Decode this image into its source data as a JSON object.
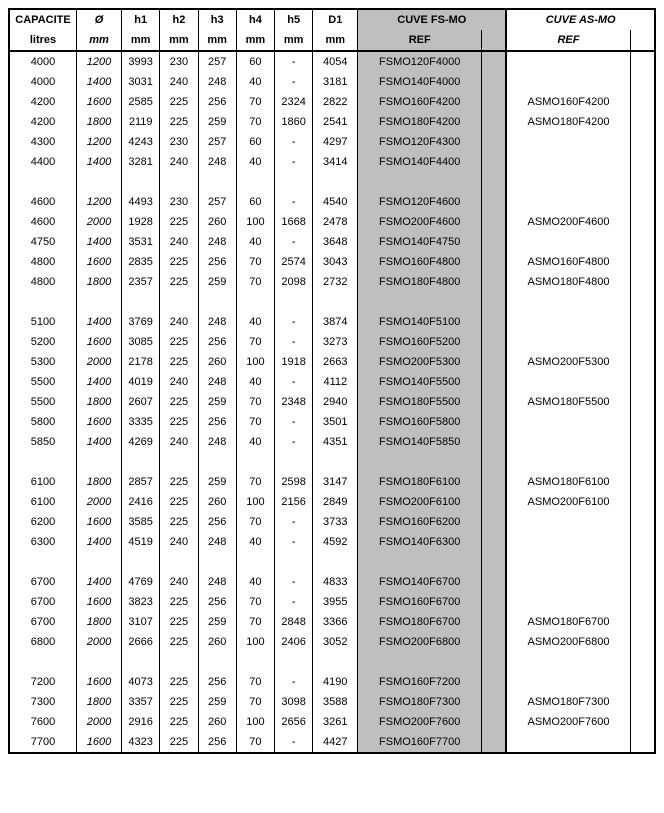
{
  "header": {
    "capacite": "CAPACITE",
    "capacite_unit": "litres",
    "diameter": "Ø",
    "unit_mm": "mm",
    "h1": "h1",
    "h2": "h2",
    "h3": "h3",
    "h4": "h4",
    "h5": "h5",
    "d1": "D1",
    "cuve_fs": "CUVE FS-MO",
    "cuve_as": "CUVE AS-MO",
    "ref": "REF"
  },
  "colors": {
    "fs_bg": "#bfbfbf",
    "border": "#000000",
    "bg": "#ffffff"
  },
  "rows": [
    {
      "cap": "4000",
      "dia": "1200",
      "h1": "3993",
      "h2": "230",
      "h3": "257",
      "h4": "60",
      "h5": "-",
      "d1": "4054",
      "fs": "FSMO120F4000",
      "as": ""
    },
    {
      "cap": "4000",
      "dia": "1400",
      "h1": "3031",
      "h2": "240",
      "h3": "248",
      "h4": "40",
      "h5": "-",
      "d1": "3181",
      "fs": "FSMO140F4000",
      "as": ""
    },
    {
      "cap": "4200",
      "dia": "1600",
      "h1": "2585",
      "h2": "225",
      "h3": "256",
      "h4": "70",
      "h5": "2324",
      "d1": "2822",
      "fs": "FSMO160F4200",
      "as": "ASMO160F4200"
    },
    {
      "cap": "4200",
      "dia": "1800",
      "h1": "2119",
      "h2": "225",
      "h3": "259",
      "h4": "70",
      "h5": "1860",
      "d1": "2541",
      "fs": "FSMO180F4200",
      "as": "ASMO180F4200"
    },
    {
      "cap": "4300",
      "dia": "1200",
      "h1": "4243",
      "h2": "230",
      "h3": "257",
      "h4": "60",
      "h5": "-",
      "d1": "4297",
      "fs": "FSMO120F4300",
      "as": ""
    },
    {
      "cap": "4400",
      "dia": "1400",
      "h1": "3281",
      "h2": "240",
      "h3": "248",
      "h4": "40",
      "h5": "-",
      "d1": "3414",
      "fs": "FSMO140F4400",
      "as": ""
    },
    {
      "blank": true
    },
    {
      "cap": "4600",
      "dia": "1200",
      "h1": "4493",
      "h2": "230",
      "h3": "257",
      "h4": "60",
      "h5": "-",
      "d1": "4540",
      "fs": "FSMO120F4600",
      "as": ""
    },
    {
      "cap": "4600",
      "dia": "2000",
      "h1": "1928",
      "h2": "225",
      "h3": "260",
      "h4": "100",
      "h5": "1668",
      "d1": "2478",
      "fs": "FSMO200F4600",
      "as": "ASMO200F4600"
    },
    {
      "cap": "4750",
      "dia": "1400",
      "h1": "3531",
      "h2": "240",
      "h3": "248",
      "h4": "40",
      "h5": "-",
      "d1": "3648",
      "fs": "FSMO140F4750",
      "as": ""
    },
    {
      "cap": "4800",
      "dia": "1600",
      "h1": "2835",
      "h2": "225",
      "h3": "256",
      "h4": "70",
      "h5": "2574",
      "d1": "3043",
      "fs": "FSMO160F4800",
      "as": "ASMO160F4800"
    },
    {
      "cap": "4800",
      "dia": "1800",
      "h1": "2357",
      "h2": "225",
      "h3": "259",
      "h4": "70",
      "h5": "2098",
      "d1": "2732",
      "fs": "FSMO180F4800",
      "as": "ASMO180F4800"
    },
    {
      "blank": true
    },
    {
      "cap": "5100",
      "dia": "1400",
      "h1": "3769",
      "h2": "240",
      "h3": "248",
      "h4": "40",
      "h5": "-",
      "d1": "3874",
      "fs": "FSMO140F5100",
      "as": ""
    },
    {
      "cap": "5200",
      "dia": "1600",
      "h1": "3085",
      "h2": "225",
      "h3": "256",
      "h4": "70",
      "h5": "-",
      "d1": "3273",
      "fs": "FSMO160F5200",
      "as": ""
    },
    {
      "cap": "5300",
      "dia": "2000",
      "h1": "2178",
      "h2": "225",
      "h3": "260",
      "h4": "100",
      "h5": "1918",
      "d1": "2663",
      "fs": "FSMO200F5300",
      "as": "ASMO200F5300"
    },
    {
      "cap": "5500",
      "dia": "1400",
      "h1": "4019",
      "h2": "240",
      "h3": "248",
      "h4": "40",
      "h5": "-",
      "d1": "4112",
      "fs": "FSMO140F5500",
      "as": ""
    },
    {
      "cap": "5500",
      "dia": "1800",
      "h1": "2607",
      "h2": "225",
      "h3": "259",
      "h4": "70",
      "h5": "2348",
      "d1": "2940",
      "fs": "FSMO180F5500",
      "as": "ASMO180F5500"
    },
    {
      "cap": "5800",
      "dia": "1600",
      "h1": "3335",
      "h2": "225",
      "h3": "256",
      "h4": "70",
      "h5": "-",
      "d1": "3501",
      "fs": "FSMO160F5800",
      "as": ""
    },
    {
      "cap": "5850",
      "dia": "1400",
      "h1": "4269",
      "h2": "240",
      "h3": "248",
      "h4": "40",
      "h5": "-",
      "d1": "4351",
      "fs": "FSMO140F5850",
      "as": ""
    },
    {
      "blank": true
    },
    {
      "cap": "6100",
      "dia": "1800",
      "h1": "2857",
      "h2": "225",
      "h3": "259",
      "h4": "70",
      "h5": "2598",
      "d1": "3147",
      "fs": "FSMO180F6100",
      "as": "ASMO180F6100"
    },
    {
      "cap": "6100",
      "dia": "2000",
      "h1": "2416",
      "h2": "225",
      "h3": "260",
      "h4": "100",
      "h5": "2156",
      "d1": "2849",
      "fs": "FSMO200F6100",
      "as": "ASMO200F6100"
    },
    {
      "cap": "6200",
      "dia": "1600",
      "h1": "3585",
      "h2": "225",
      "h3": "256",
      "h4": "70",
      "h5": "-",
      "d1": "3733",
      "fs": "FSMO160F6200",
      "as": ""
    },
    {
      "cap": "6300",
      "dia": "1400",
      "h1": "4519",
      "h2": "240",
      "h3": "248",
      "h4": "40",
      "h5": "-",
      "d1": "4592",
      "fs": "FSMO140F6300",
      "as": ""
    },
    {
      "blank": true
    },
    {
      "cap": "6700",
      "dia": "1400",
      "h1": "4769",
      "h2": "240",
      "h3": "248",
      "h4": "40",
      "h5": "-",
      "d1": "4833",
      "fs": "FSMO140F6700",
      "as": ""
    },
    {
      "cap": "6700",
      "dia": "1600",
      "h1": "3823",
      "h2": "225",
      "h3": "256",
      "h4": "70",
      "h5": "-",
      "d1": "3955",
      "fs": "FSMO160F6700",
      "as": ""
    },
    {
      "cap": "6700",
      "dia": "1800",
      "h1": "3107",
      "h2": "225",
      "h3": "259",
      "h4": "70",
      "h5": "2848",
      "d1": "3366",
      "fs": "FSMO180F6700",
      "as": "ASMO180F6700"
    },
    {
      "cap": "6800",
      "dia": "2000",
      "h1": "2666",
      "h2": "225",
      "h3": "260",
      "h4": "100",
      "h5": "2406",
      "d1": "3052",
      "fs": "FSMO200F6800",
      "as": "ASMO200F6800"
    },
    {
      "blank": true
    },
    {
      "cap": "7200",
      "dia": "1600",
      "h1": "4073",
      "h2": "225",
      "h3": "256",
      "h4": "70",
      "h5": "-",
      "d1": "4190",
      "fs": "FSMO160F7200",
      "as": ""
    },
    {
      "cap": "7300",
      "dia": "1800",
      "h1": "3357",
      "h2": "225",
      "h3": "259",
      "h4": "70",
      "h5": "3098",
      "d1": "3588",
      "fs": "FSMO180F7300",
      "as": "ASMO180F7300"
    },
    {
      "cap": "7600",
      "dia": "2000",
      "h1": "2916",
      "h2": "225",
      "h3": "260",
      "h4": "100",
      "h5": "2656",
      "d1": "3261",
      "fs": "FSMO200F7600",
      "as": "ASMO200F7600"
    },
    {
      "cap": "7700",
      "dia": "1600",
      "h1": "4323",
      "h2": "225",
      "h3": "256",
      "h4": "70",
      "h5": "-",
      "d1": "4427",
      "fs": "FSMO160F7700",
      "as": ""
    }
  ]
}
